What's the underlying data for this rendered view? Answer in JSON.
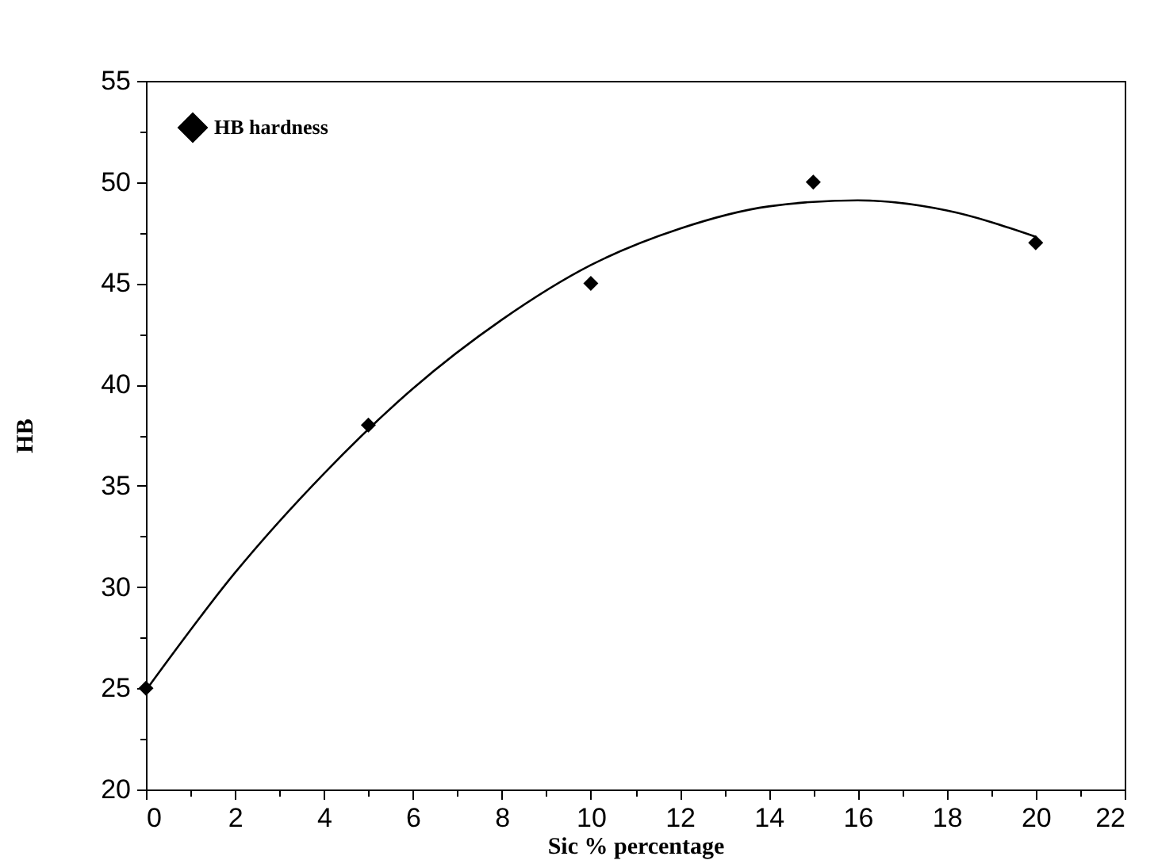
{
  "chart_data": {
    "type": "scatter",
    "xlabel": "Sic % percentage",
    "ylabel": "HB",
    "xlim": [
      0,
      22
    ],
    "ylim": [
      20,
      55
    ],
    "xticks": [
      0,
      {
        "value": 1,
        "label": null
      },
      2,
      {
        "value": 3,
        "label": null
      },
      4,
      {
        "value": 5,
        "label": null
      },
      6,
      {
        "value": 7,
        "label": null
      },
      8,
      {
        "value": 9,
        "label": null
      },
      10,
      {
        "value": 11,
        "label": null
      },
      12,
      {
        "value": 13,
        "label": null
      },
      14,
      {
        "value": 15,
        "label": null
      },
      16,
      {
        "value": 17,
        "label": null
      },
      18,
      {
        "value": 19,
        "label": null
      },
      20,
      {
        "value": 21,
        "label": null
      },
      22
    ],
    "yticks": [
      20,
      {
        "value": 22.5,
        "label": null
      },
      25,
      {
        "value": 27.5,
        "label": null
      },
      30,
      {
        "value": 32.5,
        "label": null
      },
      35,
      {
        "value": 37.5,
        "label": null
      },
      40,
      {
        "value": 42.5,
        "label": null
      },
      45,
      {
        "value": 47.5,
        "label": null
      },
      50,
      {
        "value": 52.5,
        "label": null
      },
      55
    ],
    "legend": "top left",
    "grid": false,
    "series": [
      {
        "type": "line",
        "color": "#000000",
        "line_style": "solid",
        "marker": "none",
        "x": [
          0,
          2,
          4,
          6,
          8,
          10,
          12,
          14,
          16,
          18,
          20
        ],
        "values": [
          24.9,
          30.7,
          35.6,
          39.8,
          43.2,
          45.9,
          47.7,
          48.8,
          49.1,
          48.6,
          47.3
        ]
      },
      {
        "name": "HB hardness",
        "color": "#000000",
        "marker": "diamond",
        "x": [
          0,
          5,
          10,
          15,
          20
        ],
        "values": [
          25,
          38,
          45,
          50,
          47
        ]
      }
    ]
  }
}
